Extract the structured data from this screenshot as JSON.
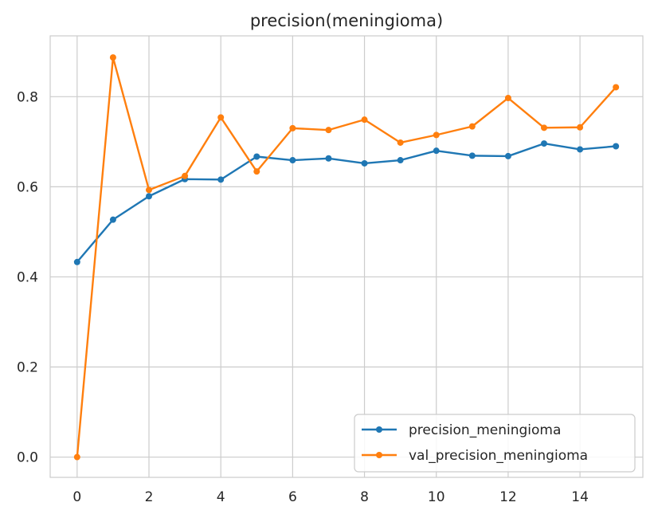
{
  "chart_data": {
    "type": "line",
    "title": "precision(meningioma)",
    "xlabel": "",
    "ylabel": "",
    "xlim": [
      -0.75,
      15.75
    ],
    "ylim": [
      -0.045,
      0.935
    ],
    "xticks": [
      0,
      2,
      4,
      6,
      8,
      10,
      12,
      14
    ],
    "yticks": [
      0.0,
      0.2,
      0.4,
      0.6,
      0.8
    ],
    "grid": true,
    "legend_position": "lower-right",
    "x": [
      0,
      1,
      2,
      3,
      4,
      5,
      6,
      7,
      8,
      9,
      10,
      11,
      12,
      13,
      14,
      15
    ],
    "series": [
      {
        "name": "precision_meningioma",
        "color": "#1f77b4",
        "marker": "circle",
        "values": [
          0.433,
          0.527,
          0.579,
          0.617,
          0.616,
          0.667,
          0.659,
          0.663,
          0.652,
          0.659,
          0.68,
          0.669,
          0.668,
          0.696,
          0.683,
          0.69
        ]
      },
      {
        "name": "val_precision_meningioma",
        "color": "#ff7f0e",
        "marker": "circle",
        "values": [
          0.0,
          0.887,
          0.593,
          0.624,
          0.754,
          0.634,
          0.73,
          0.726,
          0.749,
          0.698,
          0.715,
          0.734,
          0.797,
          0.731,
          0.732,
          0.821
        ]
      }
    ]
  }
}
